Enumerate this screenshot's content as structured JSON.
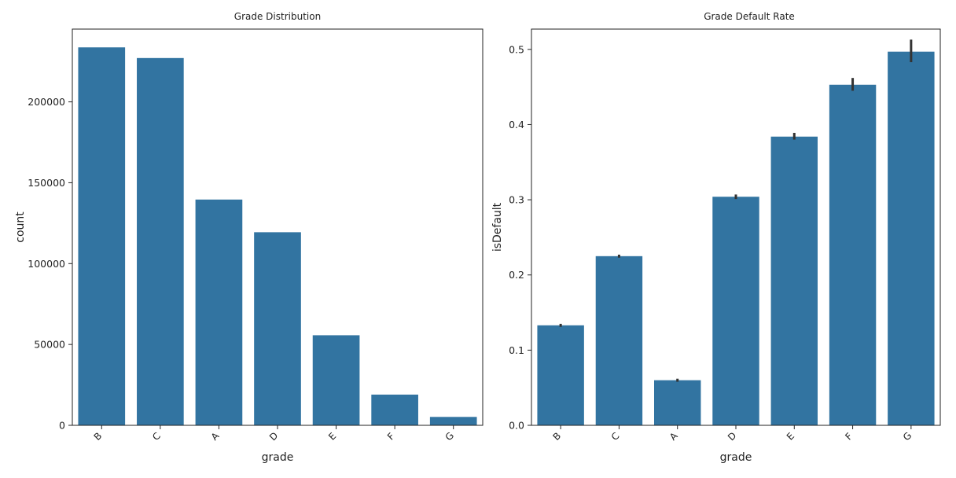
{
  "chart_data": [
    {
      "type": "bar",
      "title": "Grade Distribution",
      "xlabel": "grade",
      "ylabel": "count",
      "categories": [
        "B",
        "C",
        "A",
        "D",
        "E",
        "F",
        "G"
      ],
      "values": [
        233700,
        227100,
        139600,
        119400,
        55700,
        19000,
        5200
      ],
      "ylim": [
        0,
        245000
      ],
      "yticks": [
        0,
        50000,
        100000,
        150000,
        200000
      ],
      "ytick_labels": [
        "0",
        "50000",
        "100000",
        "150000",
        "200000"
      ],
      "grid": false,
      "color": "#3274a1"
    },
    {
      "type": "bar",
      "title": "Grade Default Rate",
      "xlabel": "grade",
      "ylabel": "isDefault",
      "categories": [
        "B",
        "C",
        "A",
        "D",
        "E",
        "F",
        "G"
      ],
      "values": [
        0.133,
        0.225,
        0.06,
        0.304,
        0.384,
        0.453,
        0.497
      ],
      "error_low": [
        0.131,
        0.223,
        0.058,
        0.301,
        0.38,
        0.445,
        0.483
      ],
      "error_high": [
        0.135,
        0.227,
        0.062,
        0.307,
        0.389,
        0.462,
        0.513
      ],
      "ylim": [
        0,
        0.527
      ],
      "yticks": [
        0,
        0.1,
        0.2,
        0.3,
        0.4,
        0.5
      ],
      "ytick_labels": [
        "0.0",
        "0.1",
        "0.2",
        "0.3",
        "0.4",
        "0.5"
      ],
      "grid": false,
      "color": "#3274a1",
      "error_color": "#333333"
    }
  ]
}
